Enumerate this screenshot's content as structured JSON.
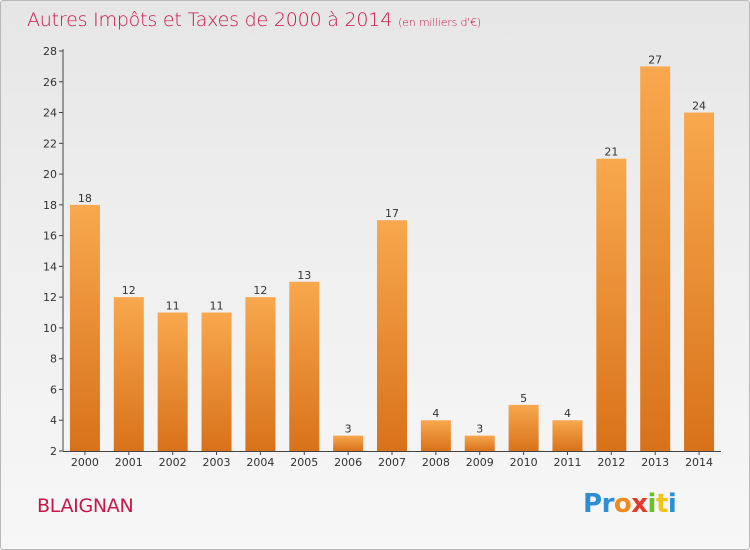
{
  "title": "Autres Impôts et Taxes de 2000 à 2014",
  "unit": "(en milliers d'€)",
  "commune": "BLAIGNAN",
  "logo": {
    "p": "P",
    "r": "r",
    "o": "o",
    "x": "x",
    "i": "i",
    "t": "t",
    "i2": "i"
  },
  "colors": {
    "bar_light": "#f7a44a",
    "bar_dark": "#e07a1e",
    "title": "#c8174a"
  },
  "chart_data": {
    "type": "bar",
    "title": "Autres Impôts et Taxes de 2000 à 2014",
    "subtitle": "(en milliers d'€)",
    "categories": [
      "2000",
      "2001",
      "2002",
      "2003",
      "2004",
      "2005",
      "2006",
      "2007",
      "2008",
      "2009",
      "2010",
      "2011",
      "2012",
      "2013",
      "2014"
    ],
    "values": [
      18,
      12,
      11,
      11,
      12,
      13,
      3,
      17,
      4,
      3,
      5,
      4,
      21,
      27,
      24
    ],
    "ylim": [
      2,
      28
    ],
    "yticks": [
      2,
      4,
      6,
      8,
      10,
      12,
      14,
      16,
      18,
      20,
      22,
      24,
      26,
      28
    ],
    "xlabel": "",
    "ylabel": "",
    "grid": false,
    "legend": "none"
  }
}
